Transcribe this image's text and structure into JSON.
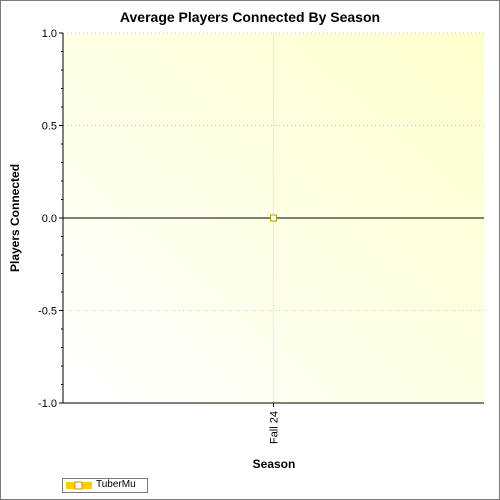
{
  "chart_data": {
    "type": "line",
    "title": "Average Players Connected By Season",
    "xlabel": "Season",
    "ylabel": "Players Connected",
    "categories": [
      "Fall 24"
    ],
    "series": [
      {
        "name": "TuberMu",
        "values": [
          0.0
        ],
        "color": "#ffcc00"
      }
    ],
    "ylim": [
      -1.0,
      1.0
    ],
    "yticks": [
      "1.0",
      "0.5",
      "0.0",
      "-0.5",
      "-1.0"
    ],
    "ytick_values": [
      1.0,
      0.5,
      0.0,
      -0.5,
      -1.0
    ],
    "grid": true,
    "legend_position": "bottom-left",
    "background_gradient": [
      "#ffffff",
      "#ffffcc"
    ]
  }
}
